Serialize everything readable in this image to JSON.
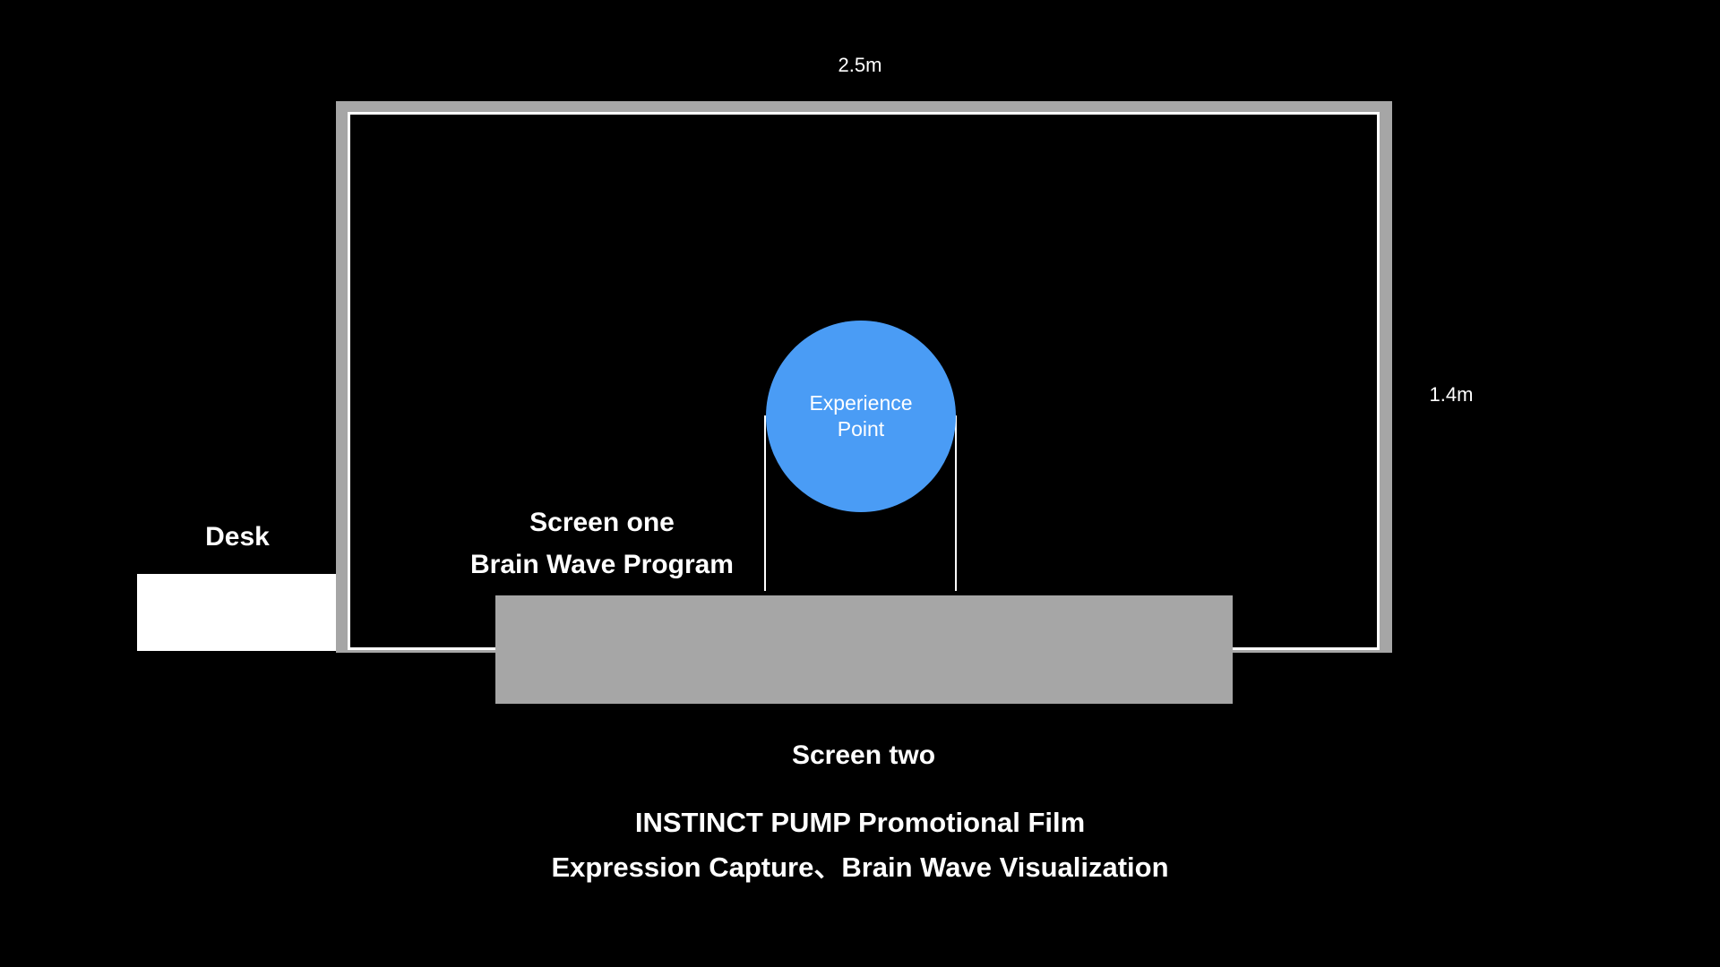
{
  "dimensions": {
    "width_label": "2.5m",
    "height_label": "1.4m"
  },
  "desk": {
    "label": "Desk"
  },
  "screen_one": {
    "line1": "Screen one",
    "line2": "Brain Wave Program"
  },
  "experience_point": {
    "line1": "Experience",
    "line2": "Point"
  },
  "screen_two": {
    "label": "Screen two"
  },
  "caption": {
    "line1": "INSTINCT PUMP Promotional Film",
    "line2": "Expression Capture、Brain Wave Visualization"
  },
  "colors": {
    "background": "#000000",
    "frame_gray": "#a6a6a6",
    "experience_blue": "#4a9cf5",
    "text": "#ffffff"
  }
}
